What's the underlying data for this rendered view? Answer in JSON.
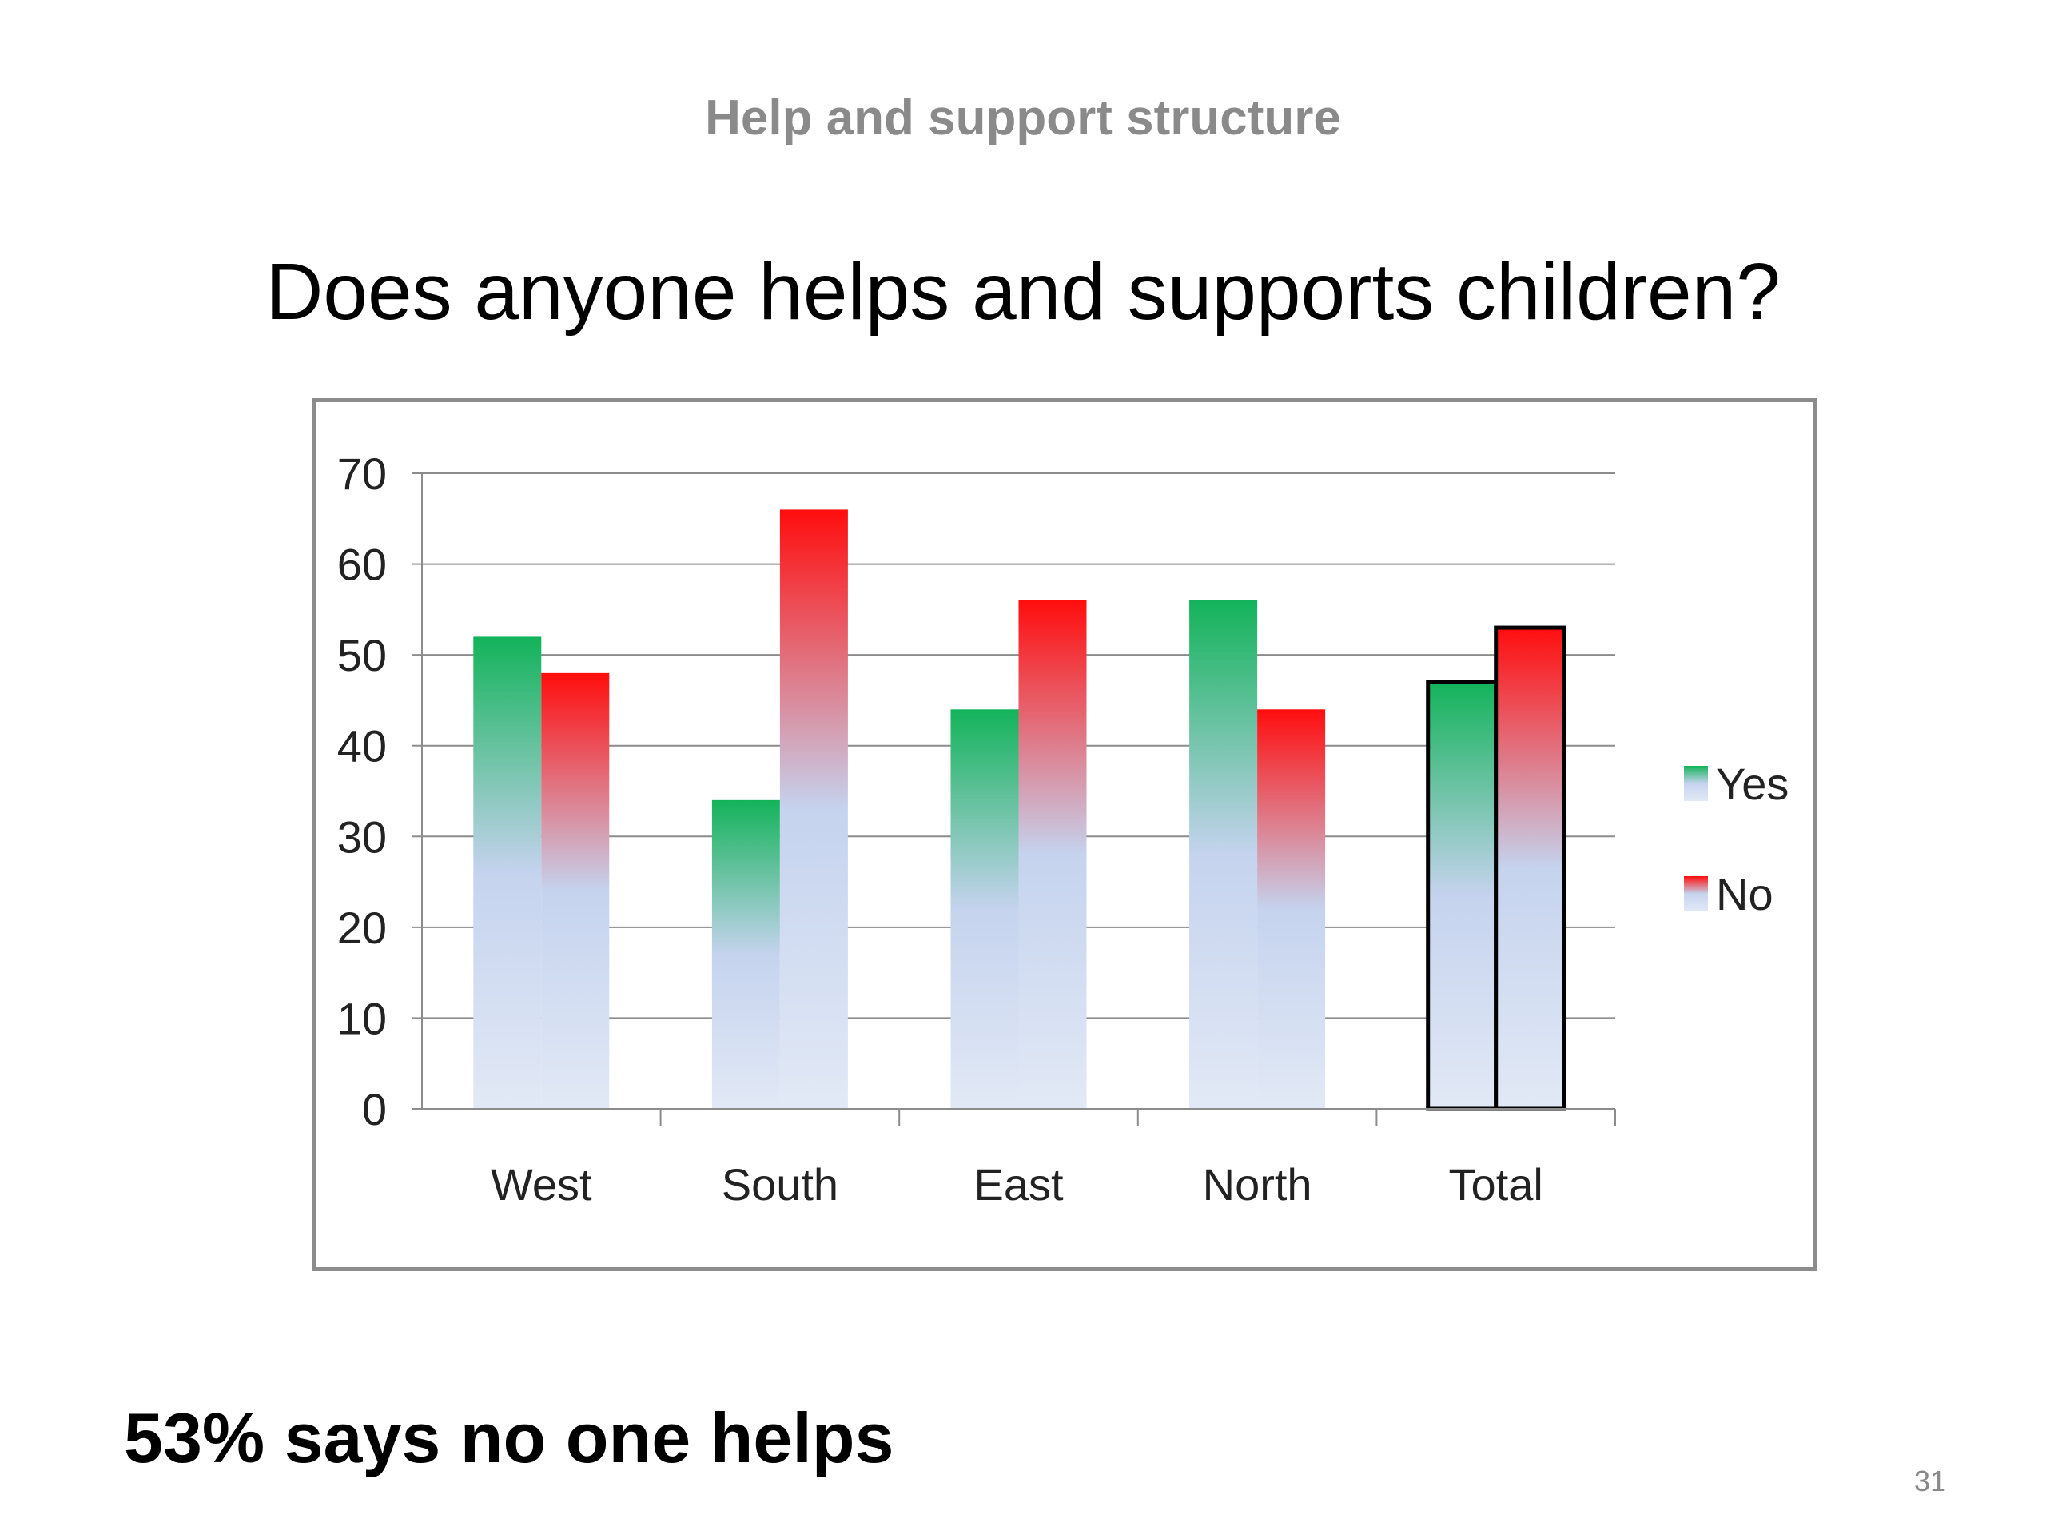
{
  "slide": {
    "header": "Help and support structure",
    "question": "Does anyone helps and supports children?",
    "conclusion": "53% says no one helps",
    "page_number": "31"
  },
  "chart_data": {
    "type": "bar",
    "title": "",
    "xlabel": "",
    "ylabel": "",
    "categories": [
      "West",
      "South",
      "East",
      "North",
      "Total"
    ],
    "series": [
      {
        "name": "Yes",
        "values": [
          52,
          34,
          44,
          56,
          47
        ],
        "color": "#13b35a"
      },
      {
        "name": "No",
        "values": [
          48,
          66,
          56,
          44,
          53
        ],
        "color": "#ff0d0d"
      }
    ],
    "ylim": [
      0,
      70
    ],
    "yticks": [
      0,
      10,
      20,
      30,
      40,
      50,
      60,
      70
    ],
    "grid": true,
    "legend": "right",
    "base_color": "#c5d3ee",
    "outlined_category": "Total"
  }
}
